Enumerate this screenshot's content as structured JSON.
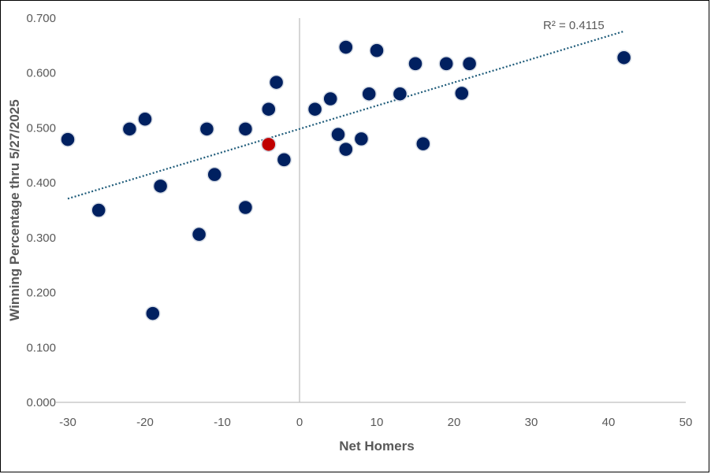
{
  "chart_data": {
    "type": "scatter",
    "xlabel": "Net Homers",
    "ylabel": "Winning Percentage thru 5/27/2025",
    "xlim": [
      -30,
      50
    ],
    "ylim": [
      0,
      0.7
    ],
    "xticks": [
      "-30",
      "-20",
      "-10",
      "0",
      "10",
      "20",
      "30",
      "40",
      "50"
    ],
    "yticks": [
      "0.000",
      "0.100",
      "0.200",
      "0.300",
      "0.400",
      "0.500",
      "0.600",
      "0.700"
    ],
    "grid": false,
    "trendline": {
      "type": "linear",
      "x_range": [
        -30,
        42
      ],
      "y_start": 0.371,
      "y_end": 0.676,
      "label": "R² = 0.4115",
      "color": "#1F5C7A"
    },
    "point_color": "#002060",
    "highlight_color": "#C00000",
    "points": [
      {
        "x": -30,
        "y": 0.479
      },
      {
        "x": -26,
        "y": 0.35
      },
      {
        "x": -22,
        "y": 0.498
      },
      {
        "x": -20,
        "y": 0.516
      },
      {
        "x": -19,
        "y": 0.162
      },
      {
        "x": -18,
        "y": 0.394
      },
      {
        "x": -13,
        "y": 0.306
      },
      {
        "x": -12,
        "y": 0.498
      },
      {
        "x": -11,
        "y": 0.415
      },
      {
        "x": -7,
        "y": 0.498
      },
      {
        "x": -7,
        "y": 0.355
      },
      {
        "x": -4,
        "y": 0.534
      },
      {
        "x": -4,
        "y": 0.47,
        "highlight": true
      },
      {
        "x": -3,
        "y": 0.583
      },
      {
        "x": -2,
        "y": 0.442
      },
      {
        "x": 2,
        "y": 0.534
      },
      {
        "x": 4,
        "y": 0.553
      },
      {
        "x": 5,
        "y": 0.488
      },
      {
        "x": 6,
        "y": 0.647
      },
      {
        "x": 6,
        "y": 0.461
      },
      {
        "x": 8,
        "y": 0.48
      },
      {
        "x": 9,
        "y": 0.562
      },
      {
        "x": 10,
        "y": 0.641
      },
      {
        "x": 13,
        "y": 0.562
      },
      {
        "x": 15,
        "y": 0.617
      },
      {
        "x": 16,
        "y": 0.471
      },
      {
        "x": 19,
        "y": 0.617
      },
      {
        "x": 21,
        "y": 0.563
      },
      {
        "x": 22,
        "y": 0.617
      },
      {
        "x": 42,
        "y": 0.628
      }
    ]
  }
}
